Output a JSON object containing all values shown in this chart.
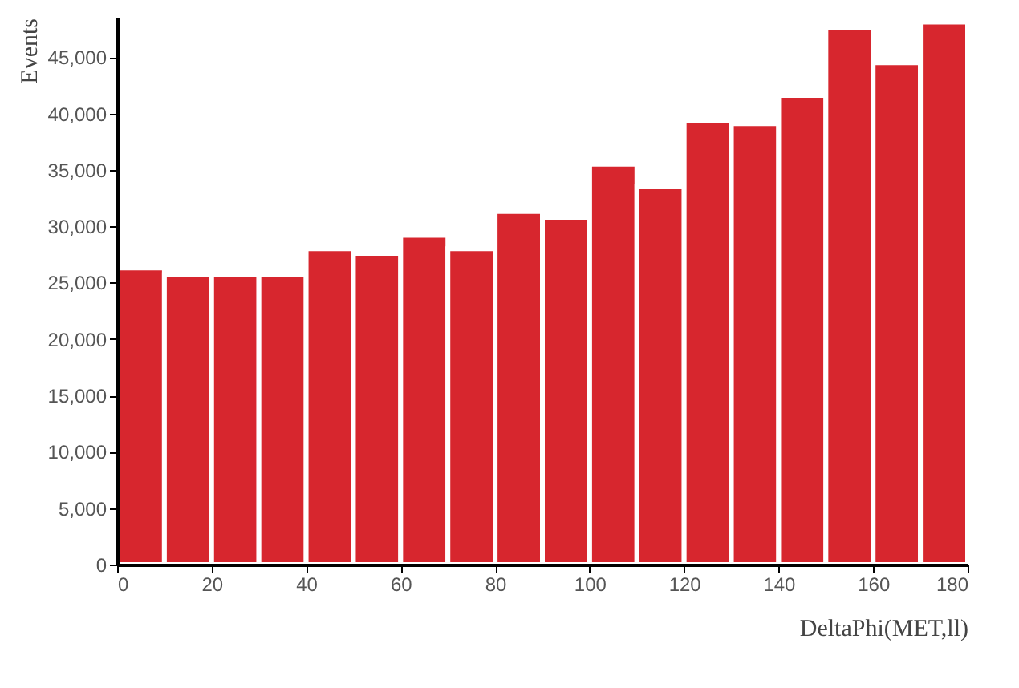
{
  "chart_data": {
    "type": "histogram",
    "xlabel": "DeltaPhi(MET,ll)",
    "ylabel": "Events",
    "bins": [
      0,
      10,
      20,
      30,
      40,
      50,
      60,
      70,
      80,
      90,
      100,
      110,
      120,
      130,
      140,
      150,
      160,
      170,
      180
    ],
    "values": [
      26300,
      25700,
      25700,
      25700,
      28000,
      27600,
      29200,
      28000,
      31300,
      30800,
      35500,
      33500,
      39400,
      39100,
      41600,
      47600,
      44500,
      48100
    ],
    "color": "#d7262e",
    "xlim": [
      0,
      180
    ],
    "xticks": [
      0,
      20,
      40,
      60,
      80,
      100,
      120,
      140,
      160,
      180
    ],
    "ylim": [
      0,
      48500
    ],
    "yticks": [
      {
        "value": 0,
        "label": "0"
      },
      {
        "value": 5000,
        "label": "5,000"
      },
      {
        "value": 10000,
        "label": "10,000"
      },
      {
        "value": 15000,
        "label": "15,000"
      },
      {
        "value": 20000,
        "label": "20,000"
      },
      {
        "value": 25000,
        "label": "25,000"
      },
      {
        "value": 30000,
        "label": "30,000"
      },
      {
        "value": 35000,
        "label": "35,000"
      },
      {
        "value": 40000,
        "label": "40,000"
      },
      {
        "value": 45000,
        "label": "45,000"
      }
    ],
    "grid": false
  }
}
